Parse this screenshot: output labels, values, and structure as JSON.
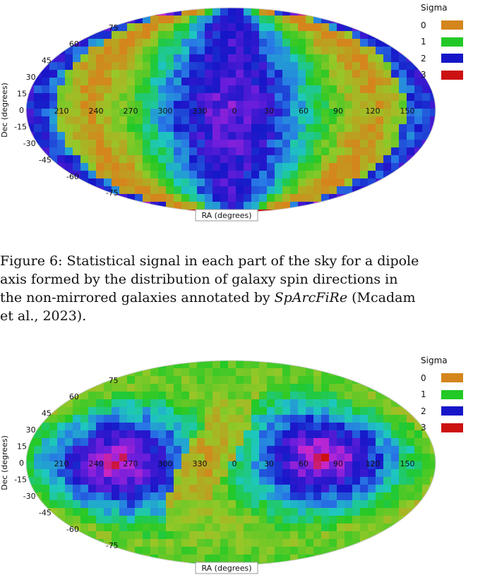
{
  "figures": [
    {
      "ra_tick_labels": [
        "210",
        "240",
        "270",
        "300",
        "330",
        "0",
        "30",
        "60",
        "90",
        "120",
        "150"
      ],
      "dec_tick_labels": [
        "75",
        "60",
        "45",
        "30",
        "15",
        "0",
        "-15",
        "-30",
        "-45",
        "-60",
        "-75"
      ],
      "xlabel": "RA (degrees)",
      "ylabel": "Dec (degrees)",
      "pattern": "dipole",
      "legend": {
        "title": "Sigma",
        "items": [
          {
            "label": "0",
            "color": "#d4861c"
          },
          {
            "label": "1",
            "color": "#22c926"
          },
          {
            "label": "2",
            "color": "#1616c8"
          },
          {
            "label": "3",
            "color": "#cc1111"
          }
        ]
      }
    },
    {
      "ra_tick_labels": [
        "210",
        "240",
        "270",
        "300",
        "330",
        "0",
        "30",
        "60",
        "90",
        "120",
        "150"
      ],
      "dec_tick_labels": [
        "75",
        "60",
        "45",
        "30",
        "15",
        "0",
        "-15",
        "-30",
        "-45",
        "-60",
        "-75"
      ],
      "xlabel": "RA (degrees)",
      "ylabel": "Dec (degrees)",
      "pattern": "quadrupole",
      "legend": {
        "title": "Sigma",
        "items": [
          {
            "label": "0",
            "color": "#d4861c"
          },
          {
            "label": "1",
            "color": "#22c926"
          },
          {
            "label": "2",
            "color": "#1616c8"
          },
          {
            "label": "3",
            "color": "#cc1111"
          }
        ]
      }
    }
  ],
  "caption": {
    "part1": "Figure 6: Statistical signal in each part of the sky for a dipole\naxis formed by the distribution of galaxy spin directions in\nthe non-mirrored galaxies annotated by ",
    "italic": "SpArcFiRe",
    "part2": " (Mcadam\net al., 2023)."
  }
}
